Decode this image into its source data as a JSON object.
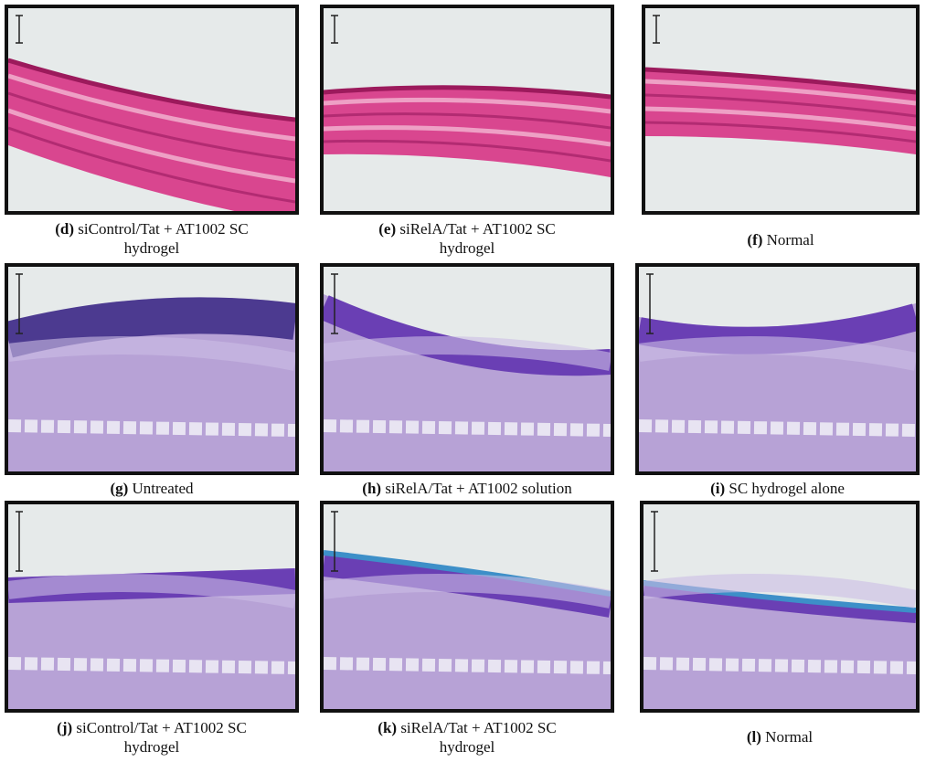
{
  "panels": [
    {
      "label": "(d)",
      "lines": [
        "siControl/Tat + AT1002 SC",
        "hydrogel"
      ]
    },
    {
      "label": "(e)",
      "lines": [
        "siRelA/Tat + AT1002 SC",
        "hydrogel"
      ]
    },
    {
      "label": "(f)",
      "lines": [
        "Normal"
      ]
    },
    {
      "label": "(g)",
      "lines": [
        "Untreated"
      ]
    },
    {
      "label": "(h)",
      "lines": [
        "siRelA/Tat + AT1002 solution"
      ]
    },
    {
      "label": "(i)",
      "lines": [
        "SC hydrogel alone"
      ]
    },
    {
      "label": "(j)",
      "lines": [
        "siControl/Tat + AT1002 SC",
        "hydrogel"
      ]
    },
    {
      "label": "(k)",
      "lines": [
        "siRelA/Tat + AT1002 SC",
        "hydrogel"
      ]
    },
    {
      "label": "(l)",
      "lines": [
        "Normal"
      ]
    }
  ]
}
